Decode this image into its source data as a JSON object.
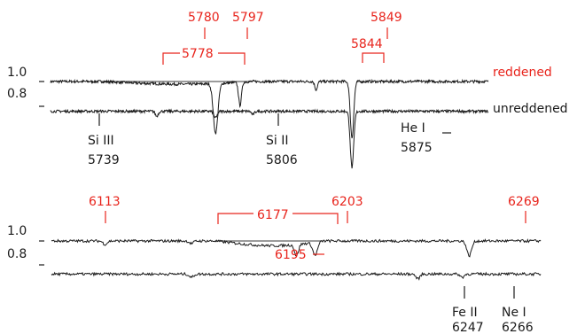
{
  "chart_data": {
    "type": "line",
    "title": "",
    "xlabel": "",
    "ylabel": "",
    "panels": [
      {
        "xlim": [
          5665,
          5970
        ],
        "ylim": [
          0.55,
          1.1
        ],
        "yticks": [
          "1.0",
          "0.8"
        ],
        "series": [
          {
            "name": "reddened",
            "offset": 0,
            "color": "#1a1a1a",
            "features": [
              {
                "center": 5780,
                "depth": 0.3,
                "width": 1.6
              },
              {
                "center": 5797,
                "depth": 0.14,
                "width": 1.0
              },
              {
                "center": 5850,
                "depth": 0.05,
                "width": 0.9
              },
              {
                "center": 5875,
                "depth": 0.34,
                "width": 1.2
              }
            ]
          },
          {
            "name": "unreddened",
            "offset": -0.18,
            "color": "#1a1a1a",
            "features": [
              {
                "center": 5739,
                "depth": 0.03,
                "width": 1.0
              },
              {
                "center": 5780,
                "depth": 0.04,
                "width": 1.2
              },
              {
                "center": 5806,
                "depth": 0.02,
                "width": 1.0
              },
              {
                "center": 5875,
                "depth": 0.34,
                "width": 1.2
              }
            ]
          }
        ],
        "broad_features": [
          {
            "label": "5778",
            "from": 5700,
            "to": 5805,
            "depth": 0.02
          }
        ],
        "series_labels": [
          {
            "text": "reddened",
            "color": "#e8241c"
          },
          {
            "text": "unreddened",
            "color": "#1a1a1a"
          }
        ],
        "dib_labels": [
          {
            "text": "5780",
            "x": 5780
          },
          {
            "text": "5797",
            "x": 5797
          },
          {
            "text": "5849",
            "x": 5849
          },
          {
            "text": "5844",
            "x": 5844,
            "bracket_from": 5837,
            "bracket_to": 5851
          },
          {
            "text": "5778",
            "x": 5778,
            "bracket_from": 5700,
            "bracket_to": 5805
          }
        ],
        "line_ids": [
          {
            "element": "Si III",
            "wavelength": "5739",
            "x": 5739
          },
          {
            "element": "Si II",
            "wavelength": "5806",
            "x": 5806
          },
          {
            "element": "He I",
            "wavelength": "5875",
            "x": 5875
          }
        ]
      },
      {
        "xlim": [
          6090,
          6300
        ],
        "ylim": [
          0.55,
          1.1
        ],
        "yticks": [
          "1.0",
          "0.8"
        ],
        "series": [
          {
            "name": "reddened",
            "offset": 0,
            "color": "#1a1a1a",
            "features": [
              {
                "center": 6113,
                "depth": 0.02,
                "width": 0.9
              },
              {
                "center": 6150,
                "depth": 0.015,
                "width": 0.9
              },
              {
                "center": 6195,
                "depth": 0.07,
                "width": 0.8
              },
              {
                "center": 6203,
                "depth": 0.08,
                "width": 1.0
              },
              {
                "center": 6269,
                "depth": 0.09,
                "width": 1.0
              }
            ]
          },
          {
            "name": "unreddened",
            "offset": -0.2,
            "color": "#1a1a1a",
            "features": [
              {
                "center": 6150,
                "depth": 0.02,
                "width": 0.9
              },
              {
                "center": 6247,
                "depth": 0.03,
                "width": 0.8
              },
              {
                "center": 6266,
                "depth": 0.02,
                "width": 0.8
              }
            ]
          }
        ],
        "broad_features": [
          {
            "label": "6177",
            "from": 6160,
            "to": 6206,
            "depth": 0.035
          }
        ],
        "series_labels": [],
        "dib_labels": [
          {
            "text": "6113",
            "x": 6113
          },
          {
            "text": "6203",
            "x": 6203
          },
          {
            "text": "6269",
            "x": 6269
          },
          {
            "text": "6177",
            "x": 6177,
            "bracket_from": 6151,
            "bracket_to": 6201
          },
          {
            "text": "6195",
            "x": 6195,
            "pointer": "right"
          }
        ],
        "line_ids": [
          {
            "element": "Fe II",
            "wavelength": "6247",
            "x": 6247
          },
          {
            "element": "Ne I",
            "wavelength": "6266",
            "x": 6266
          }
        ]
      }
    ]
  }
}
